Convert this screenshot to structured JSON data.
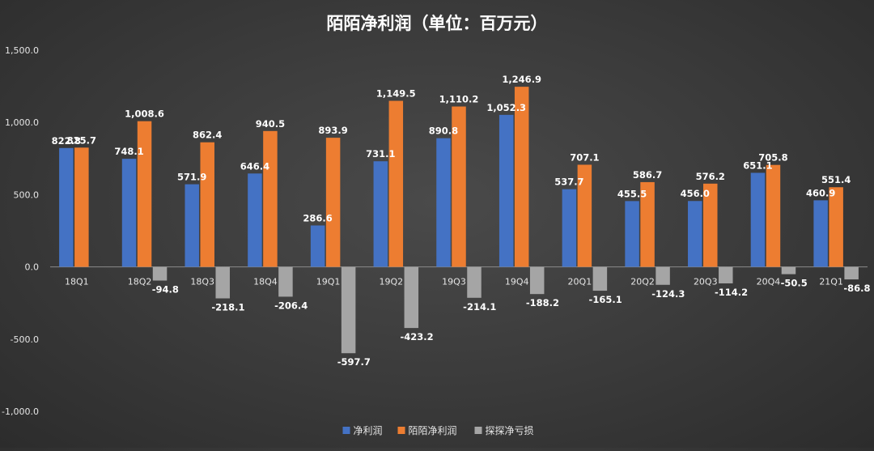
{
  "chart_data": {
    "type": "bar",
    "title": "陌陌净利润（单位：百万元）",
    "categories": [
      "18Q1",
      "18Q2",
      "18Q3",
      "18Q4",
      "19Q1",
      "19Q2",
      "19Q3",
      "19Q4",
      "20Q1",
      "20Q2",
      "20Q3",
      "20Q4",
      "21Q1"
    ],
    "series": [
      {
        "name": "净利润",
        "color": "#4472C4",
        "values": [
          822.8,
          748.1,
          571.9,
          646.4,
          286.6,
          731.1,
          890.8,
          1052.3,
          537.7,
          455.5,
          456.0,
          651.1,
          460.9
        ]
      },
      {
        "name": "陌陌净利润",
        "color": "#ED7D31",
        "values": [
          825.7,
          1008.6,
          862.4,
          940.5,
          893.9,
          1149.5,
          1110.2,
          1246.9,
          707.1,
          586.7,
          576.2,
          705.8,
          551.4
        ]
      },
      {
        "name": "探探净亏损",
        "color": "#A5A5A5",
        "values": [
          null,
          -94.8,
          -218.1,
          -206.4,
          -597.7,
          -423.2,
          -214.1,
          -188.2,
          -165.1,
          -124.3,
          -114.2,
          -50.5,
          -86.8
        ]
      }
    ],
    "data_labels": [
      [
        "822.8",
        "748.1",
        "571.9",
        "646.4",
        "286.6",
        "731.1",
        "890.8",
        "1,052.3",
        "537.7",
        "455.5",
        "456.0",
        "651.1",
        "460.9"
      ],
      [
        "825.7",
        "1,008.6",
        "862.4",
        "940.5",
        "893.9",
        "1,149.5",
        "1,110.2",
        "1,246.9",
        "707.1",
        "586.7",
        "576.2",
        "705.8",
        "551.4"
      ],
      [
        "",
        "-94.8",
        "-218.1",
        "-206.4",
        "-597.7",
        "-423.2",
        "-214.1",
        "-188.2",
        "-165.1",
        "-124.3",
        "-114.2",
        "-50.5",
        "-86.8"
      ]
    ],
    "yticks": [
      1500,
      1000,
      500,
      0,
      -500,
      -1000
    ],
    "ytick_labels": [
      "1,500.0",
      "1,000.0",
      "500.0",
      "0.0",
      "-500.0",
      "-1,000.0"
    ],
    "ylim": [
      -1000,
      1500
    ],
    "legend_position": "bottom",
    "grid": false
  }
}
